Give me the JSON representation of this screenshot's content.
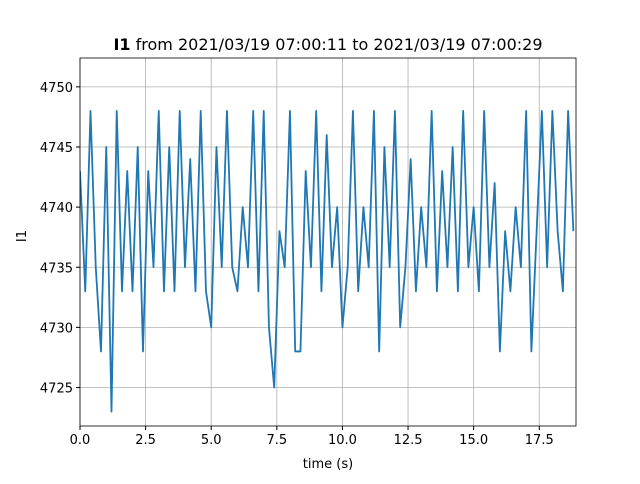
{
  "chart_data": {
    "type": "line",
    "title_prefix": "I1",
    "title": "from 2021/03/19 07:00:11 to 2021/03/19 07:00:29",
    "xlabel": "time (s)",
    "ylabel": "I1",
    "xlim": [
      0,
      18.9
    ],
    "ylim": [
      4721.8,
      4752.4
    ],
    "xticks": [
      {
        "value": 0,
        "label": "0.0"
      },
      2.5,
      {
        "value": 5,
        "label": "5.0"
      },
      7.5,
      {
        "value": 10,
        "label": "10.0"
      },
      12.5,
      {
        "value": 15,
        "label": "15.0"
      },
      17.5
    ],
    "yticks": [
      4725,
      4730,
      4735,
      4740,
      4745,
      4750
    ],
    "grid": true,
    "series": [
      {
        "color": "#1f77b4",
        "x": [
          0,
          0.2,
          0.4,
          0.6,
          0.8,
          1,
          1.2,
          1.4,
          1.6,
          1.8,
          2,
          2.2,
          2.4,
          2.6,
          2.8,
          3,
          3.2,
          3.4,
          3.6,
          3.8,
          4,
          4.2,
          4.4,
          4.6,
          4.8,
          5,
          5.2,
          5.4,
          5.6,
          5.8,
          6,
          6.2,
          6.4,
          6.6,
          6.8,
          7,
          7.2,
          7.4,
          7.6,
          7.8,
          8,
          8.2,
          8.4,
          8.6,
          8.8,
          9,
          9.2,
          9.4,
          9.6,
          9.8,
          10,
          10.2,
          10.4,
          10.6,
          10.8,
          11,
          11.2,
          11.4,
          11.6,
          11.8,
          12,
          12.2,
          12.4,
          12.6,
          12.8,
          13,
          13.2,
          13.4,
          13.6,
          13.8,
          14,
          14.2,
          14.4,
          14.6,
          14.8,
          15,
          15.2,
          15.4,
          15.6,
          15.8,
          16,
          16.2,
          16.4,
          16.6,
          16.8,
          17,
          17.2,
          17.4,
          17.6,
          17.8,
          18,
          18.2,
          18.4,
          18.6,
          18.8
        ],
        "values": [
          4743,
          4733,
          4748,
          4735,
          4728,
          4745,
          4723,
          4748,
          4733,
          4743,
          4733,
          4745,
          4728,
          4743,
          4735,
          4748,
          4733,
          4745,
          4733,
          4748,
          4735,
          4744,
          4733,
          4748,
          4733,
          4730,
          4745,
          4735,
          4748,
          4735,
          4733,
          4740,
          4735,
          4748,
          4733,
          4748,
          4730,
          4725,
          4738,
          4735,
          4748,
          4728,
          4728,
          4743,
          4735,
          4748,
          4733,
          4746,
          4735,
          4740,
          4730,
          4735,
          4748,
          4733,
          4740,
          4735,
          4748,
          4728,
          4745,
          4735,
          4748,
          4730,
          4735,
          4744,
          4733,
          4740,
          4735,
          4748,
          4733,
          4743,
          4735,
          4745,
          4733,
          4748,
          4735,
          4740,
          4733,
          4748,
          4735,
          4742,
          4728,
          4738,
          4733,
          4740,
          4735,
          4748,
          4728,
          4738,
          4748,
          4735,
          4748,
          4738,
          4733,
          4748,
          4738
        ]
      }
    ]
  }
}
